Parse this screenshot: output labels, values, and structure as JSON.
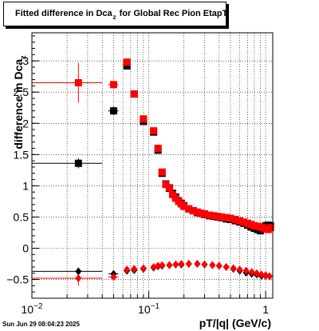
{
  "header": {
    "title_main": "Fitted difference in Dca",
    "title_sub": "z",
    "title_rest": "for Global Rec Pion EtapT"
  },
  "axes": {
    "ylabel_main": "difference in Dca",
    "ylabel_sub": "z",
    "xlabel": "pT/|q| (GeV/c)"
  },
  "footer": {
    "timestamp": "Sun Jun 29 08:04:23 2025"
  },
  "colors": {
    "black_series": "#000000",
    "red_series": "#ff0000"
  },
  "chart_data": {
    "type": "scatter",
    "x_scale": "log",
    "xlim": [
      0.01,
      1.15
    ],
    "ylim": [
      -0.8,
      3.45
    ],
    "grid": true,
    "x_tick_labels": [
      {
        "value": 0.01,
        "base": "10",
        "exp": "−2"
      },
      {
        "value": 0.1,
        "base": "10",
        "exp": "−1"
      },
      {
        "value": 1,
        "base": "1",
        "exp": ""
      }
    ],
    "y_ticks": [
      -0.5,
      0,
      0.5,
      1,
      1.5,
      2,
      2.5,
      3
    ],
    "y_tick_labels": [
      "−0.5",
      "0",
      "0.5",
      "1",
      "1.5",
      "2",
      "2.5",
      "3"
    ],
    "series": [
      {
        "marker": "square",
        "color": "#000000",
        "points": [
          {
            "x": 0.025,
            "y": 1.36,
            "xerr": [
              0.01,
              0.04
            ],
            "yerr": 0.08
          },
          {
            "x": 0.05,
            "y": 2.2,
            "xerr": [
              0.045,
              0.055
            ],
            "yerr": 0.07
          },
          {
            "x": 0.065,
            "y": 2.92
          },
          {
            "x": 0.075,
            "y": 2.47
          },
          {
            "x": 0.09,
            "y": 2.03
          },
          {
            "x": 0.11,
            "y": 1.86
          },
          {
            "x": 0.12,
            "y": 1.57
          },
          {
            "x": 0.13,
            "y": 1.2
          },
          {
            "x": 0.14,
            "y": 1.03
          },
          {
            "x": 0.15,
            "y": 0.96
          },
          {
            "x": 0.16,
            "y": 0.88
          },
          {
            "x": 0.17,
            "y": 0.82
          },
          {
            "x": 0.18,
            "y": 0.76
          },
          {
            "x": 0.19,
            "y": 0.72
          },
          {
            "x": 0.2,
            "y": 0.68
          },
          {
            "x": 0.22,
            "y": 0.63
          },
          {
            "x": 0.24,
            "y": 0.6
          },
          {
            "x": 0.26,
            "y": 0.57
          },
          {
            "x": 0.28,
            "y": 0.56
          },
          {
            "x": 0.3,
            "y": 0.54
          },
          {
            "x": 0.33,
            "y": 0.52
          },
          {
            "x": 0.36,
            "y": 0.51
          },
          {
            "x": 0.39,
            "y": 0.5
          },
          {
            "x": 0.42,
            "y": 0.49
          },
          {
            "x": 0.46,
            "y": 0.47
          },
          {
            "x": 0.5,
            "y": 0.46
          },
          {
            "x": 0.55,
            "y": 0.44
          },
          {
            "x": 0.6,
            "y": 0.42
          },
          {
            "x": 0.65,
            "y": 0.4
          },
          {
            "x": 0.7,
            "y": 0.37
          },
          {
            "x": 0.75,
            "y": 0.34
          },
          {
            "x": 0.8,
            "y": 0.32
          },
          {
            "x": 0.85,
            "y": 0.3
          },
          {
            "x": 0.9,
            "y": 0.28
          },
          {
            "x": 0.95,
            "y": 0.32
          },
          {
            "x": 1.0,
            "y": 0.36
          },
          {
            "x": 1.05,
            "y": 0.37
          },
          {
            "x": 1.1,
            "y": 0.36
          }
        ]
      },
      {
        "marker": "square",
        "color": "#ff0000",
        "points": [
          {
            "x": 0.025,
            "y": 2.65,
            "xerr": [
              0.01,
              0.04
            ],
            "yerr": 0.32
          },
          {
            "x": 0.05,
            "y": 2.62,
            "xerr": [
              0.045,
              0.055
            ],
            "yerr": 0.06
          },
          {
            "x": 0.065,
            "y": 2.98
          },
          {
            "x": 0.075,
            "y": 2.47
          },
          {
            "x": 0.09,
            "y": 2.07
          },
          {
            "x": 0.11,
            "y": 1.88
          },
          {
            "x": 0.12,
            "y": 1.6
          },
          {
            "x": 0.13,
            "y": 1.22
          },
          {
            "x": 0.14,
            "y": 1.02
          },
          {
            "x": 0.15,
            "y": 0.97
          },
          {
            "x": 0.16,
            "y": 0.86
          },
          {
            "x": 0.17,
            "y": 0.8
          },
          {
            "x": 0.18,
            "y": 0.75
          },
          {
            "x": 0.19,
            "y": 0.71
          },
          {
            "x": 0.2,
            "y": 0.67
          },
          {
            "x": 0.22,
            "y": 0.63
          },
          {
            "x": 0.24,
            "y": 0.6
          },
          {
            "x": 0.26,
            "y": 0.58
          },
          {
            "x": 0.28,
            "y": 0.56
          },
          {
            "x": 0.3,
            "y": 0.55
          },
          {
            "x": 0.33,
            "y": 0.53
          },
          {
            "x": 0.36,
            "y": 0.52
          },
          {
            "x": 0.39,
            "y": 0.51
          },
          {
            "x": 0.42,
            "y": 0.5
          },
          {
            "x": 0.46,
            "y": 0.49
          },
          {
            "x": 0.5,
            "y": 0.48
          },
          {
            "x": 0.55,
            "y": 0.46
          },
          {
            "x": 0.6,
            "y": 0.44
          },
          {
            "x": 0.65,
            "y": 0.42
          },
          {
            "x": 0.7,
            "y": 0.4
          },
          {
            "x": 0.75,
            "y": 0.38
          },
          {
            "x": 0.8,
            "y": 0.36
          },
          {
            "x": 0.85,
            "y": 0.35
          },
          {
            "x": 0.9,
            "y": 0.34
          },
          {
            "x": 0.95,
            "y": 0.33
          },
          {
            "x": 1.0,
            "y": 0.31
          },
          {
            "x": 1.05,
            "y": 0.3
          },
          {
            "x": 1.1,
            "y": 0.33
          }
        ]
      },
      {
        "marker": "diamond",
        "color": "#000000",
        "points": [
          {
            "x": 0.025,
            "y": -0.37,
            "xerr": [
              0.01,
              0.04
            ],
            "yerr": 0.06
          },
          {
            "x": 0.05,
            "y": -0.41,
            "xerr": [
              0.045,
              0.055
            ],
            "yerr": 0.05
          },
          {
            "x": 0.065,
            "y": -0.36
          },
          {
            "x": 0.075,
            "y": -0.35
          },
          {
            "x": 0.09,
            "y": -0.33
          },
          {
            "x": 0.11,
            "y": -0.31
          },
          {
            "x": 0.12,
            "y": -0.29
          },
          {
            "x": 0.13,
            "y": -0.28
          },
          {
            "x": 0.15,
            "y": -0.27
          },
          {
            "x": 0.17,
            "y": -0.26
          },
          {
            "x": 0.19,
            "y": -0.26
          },
          {
            "x": 0.22,
            "y": -0.25
          },
          {
            "x": 0.26,
            "y": -0.25
          },
          {
            "x": 0.3,
            "y": -0.26
          },
          {
            "x": 0.35,
            "y": -0.27
          },
          {
            "x": 0.4,
            "y": -0.28
          },
          {
            "x": 0.46,
            "y": -0.3
          },
          {
            "x": 0.53,
            "y": -0.33
          },
          {
            "x": 0.6,
            "y": -0.36
          },
          {
            "x": 0.68,
            "y": -0.39
          },
          {
            "x": 0.76,
            "y": -0.41
          },
          {
            "x": 0.84,
            "y": -0.42
          },
          {
            "x": 0.92,
            "y": -0.44
          },
          {
            "x": 1.0,
            "y": -0.44
          },
          {
            "x": 1.08,
            "y": -0.45
          }
        ]
      },
      {
        "marker": "diamond",
        "color": "#ff0000",
        "points": [
          {
            "x": 0.025,
            "y": -0.48,
            "xerr": [
              0.01,
              0.04
            ],
            "yerr": 0.12
          },
          {
            "x": 0.05,
            "y": -0.46,
            "xerr": [
              0.045,
              0.055
            ],
            "yerr": 0.05
          },
          {
            "x": 0.065,
            "y": -0.34
          },
          {
            "x": 0.075,
            "y": -0.33
          },
          {
            "x": 0.09,
            "y": -0.32
          },
          {
            "x": 0.11,
            "y": -0.3
          },
          {
            "x": 0.12,
            "y": -0.28
          },
          {
            "x": 0.13,
            "y": -0.27
          },
          {
            "x": 0.15,
            "y": -0.27
          },
          {
            "x": 0.17,
            "y": -0.26
          },
          {
            "x": 0.19,
            "y": -0.25
          },
          {
            "x": 0.22,
            "y": -0.25
          },
          {
            "x": 0.26,
            "y": -0.25
          },
          {
            "x": 0.3,
            "y": -0.26
          },
          {
            "x": 0.35,
            "y": -0.27
          },
          {
            "x": 0.4,
            "y": -0.28
          },
          {
            "x": 0.46,
            "y": -0.3
          },
          {
            "x": 0.53,
            "y": -0.32
          },
          {
            "x": 0.6,
            "y": -0.34
          },
          {
            "x": 0.68,
            "y": -0.36
          },
          {
            "x": 0.76,
            "y": -0.38
          },
          {
            "x": 0.84,
            "y": -0.4
          },
          {
            "x": 0.92,
            "y": -0.42
          },
          {
            "x": 1.0,
            "y": -0.43
          },
          {
            "x": 1.08,
            "y": -0.45
          }
        ]
      }
    ]
  }
}
